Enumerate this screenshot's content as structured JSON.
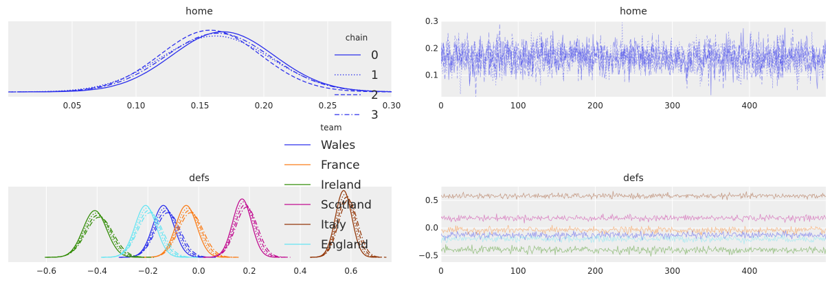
{
  "chart_data": [
    {
      "type": "line",
      "kind": "density",
      "title": "home",
      "xticks": [
        0.05,
        0.1,
        0.15,
        0.2,
        0.25,
        0.3
      ],
      "xticklabels": [
        "0.05",
        "0.10",
        "0.15",
        "0.20",
        "0.25",
        "0.30"
      ],
      "xlim": [
        0.0,
        0.3
      ],
      "grid": true,
      "legend": {
        "title": "chart chain",
        "title_text": "chain",
        "placement": "right",
        "entries": [
          {
            "label": "0",
            "dash": "solid"
          },
          {
            "label": "1",
            "dash": "dotted"
          },
          {
            "label": "2",
            "dash": "dashed"
          },
          {
            "label": "3",
            "dash": "dashdot"
          }
        ]
      },
      "series": [
        {
          "name": "0",
          "color": "#2a2eec",
          "mean": 0.168,
          "sd": 0.04
        },
        {
          "name": "1",
          "color": "#2a2eec",
          "mean": 0.162,
          "sd": 0.043
        },
        {
          "name": "2",
          "color": "#2a2eec",
          "mean": 0.158,
          "sd": 0.039
        },
        {
          "name": "3",
          "color": "#2a2eec",
          "mean": 0.164,
          "sd": 0.041
        }
      ]
    },
    {
      "type": "line",
      "kind": "trace",
      "title": "home",
      "xticks": [
        0,
        100,
        200,
        300,
        400
      ],
      "xticklabels": [
        "0",
        "100",
        "200",
        "300",
        "400"
      ],
      "yticks": [
        0.1,
        0.2,
        0.3
      ],
      "yticklabels": [
        "0.1",
        "0.2",
        "0.3"
      ],
      "xlim": [
        0,
        499
      ],
      "ylim": [
        0.02,
        0.3
      ],
      "grid": true,
      "draws": 500,
      "series": [
        {
          "name": "0",
          "color": "#2a2eec",
          "mean": 0.165,
          "sd": 0.04
        },
        {
          "name": "1",
          "color": "#2a2eec",
          "mean": 0.165,
          "sd": 0.04
        },
        {
          "name": "2",
          "color": "#2a2eec",
          "mean": 0.165,
          "sd": 0.04
        },
        {
          "name": "3",
          "color": "#2a2eec",
          "mean": 0.165,
          "sd": 0.04
        }
      ]
    },
    {
      "type": "line",
      "kind": "density",
      "title": "defs",
      "xticks": [
        -0.6,
        -0.4,
        -0.2,
        0.0,
        0.2,
        0.4,
        0.6
      ],
      "xticklabels": [
        "−0.6",
        "−0.4",
        "−0.2",
        "0.0",
        "0.2",
        "0.4",
        "0.6"
      ],
      "xlim": [
        -0.75,
        0.76
      ],
      "grid": true,
      "legend": {
        "title_text": "team",
        "placement": "upper-left",
        "entries": [
          {
            "label": "Wales",
            "color": "#2a2eec"
          },
          {
            "label": "France",
            "color": "#fa7c17"
          },
          {
            "label": "Ireland",
            "color": "#328c06"
          },
          {
            "label": "Scotland",
            "color": "#c10c90"
          },
          {
            "label": "Italy",
            "color": "#933708"
          },
          {
            "label": "England",
            "color": "#65e5f3"
          }
        ]
      },
      "series": [
        {
          "name": "Wales",
          "color": "#2a2eec",
          "mean": -0.13,
          "sd": 0.045
        },
        {
          "name": "France",
          "color": "#fa7c17",
          "mean": -0.04,
          "sd": 0.045
        },
        {
          "name": "Ireland",
          "color": "#328c06",
          "mean": -0.4,
          "sd": 0.05
        },
        {
          "name": "Scotland",
          "color": "#c10c90",
          "mean": 0.18,
          "sd": 0.04
        },
        {
          "name": "Italy",
          "color": "#933708",
          "mean": 0.58,
          "sd": 0.035
        },
        {
          "name": "England",
          "color": "#65e5f3",
          "mean": -0.2,
          "sd": 0.045
        }
      ]
    },
    {
      "type": "line",
      "kind": "trace",
      "title": "defs",
      "xticks": [
        0,
        100,
        200,
        300,
        400
      ],
      "xticklabels": [
        "0",
        "100",
        "200",
        "300",
        "400"
      ],
      "yticks": [
        -0.5,
        0.0,
        0.5
      ],
      "yticklabels": [
        "−0.5",
        "0.0",
        "0.5"
      ],
      "xlim": [
        0,
        499
      ],
      "ylim": [
        -0.62,
        0.75
      ],
      "grid": true,
      "draws": 500,
      "series": [
        {
          "name": "Wales",
          "color": "#2a2eec",
          "mean": -0.13,
          "sd": 0.045
        },
        {
          "name": "France",
          "color": "#fa7c17",
          "mean": -0.04,
          "sd": 0.045
        },
        {
          "name": "Ireland",
          "color": "#328c06",
          "mean": -0.4,
          "sd": 0.05
        },
        {
          "name": "Scotland",
          "color": "#c10c90",
          "mean": 0.18,
          "sd": 0.04
        },
        {
          "name": "Italy",
          "color": "#933708",
          "mean": 0.58,
          "sd": 0.035
        },
        {
          "name": "England",
          "color": "#65e5f3",
          "mean": -0.2,
          "sd": 0.045
        }
      ]
    }
  ]
}
